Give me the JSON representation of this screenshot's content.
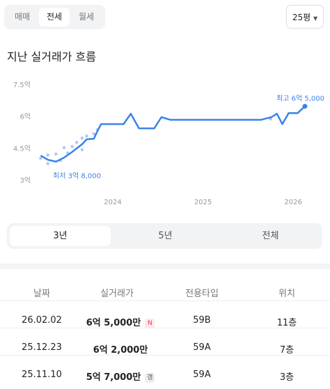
{
  "tabs": {
    "items": [
      "매매",
      "전세",
      "월세"
    ],
    "selected": 1
  },
  "size_select": "25평",
  "section_title": "지난 실거래가 흐름",
  "chart_data": {
    "type": "line",
    "color": "#3b82e8",
    "x": [
      2023.2,
      2023.28,
      2023.37,
      2023.46,
      2023.55,
      2023.66,
      2023.71,
      2023.79,
      2023.83,
      2023.87,
      2024.12,
      2024.2,
      2024.29,
      2024.46,
      2024.54,
      2024.64,
      2025.64,
      2025.76,
      2025.82,
      2025.88,
      2025.95,
      2026.05,
      2026.13
    ],
    "values": [
      4.18,
      3.98,
      3.89,
      4.08,
      4.35,
      4.71,
      4.94,
      4.97,
      5.33,
      5.66,
      5.66,
      6.15,
      5.46,
      5.46,
      5.99,
      5.86,
      5.86,
      5.99,
      6.15,
      5.66,
      6.18,
      6.18,
      6.5
    ],
    "scatter": {
      "color": "#a9c8f5",
      "x": [
        2023.2,
        2023.28,
        2023.28,
        2023.37,
        2023.42,
        2023.46,
        2023.5,
        2023.55,
        2023.6,
        2023.66,
        2023.66,
        2023.71,
        2023.79,
        2023.83,
        2025.75
      ],
      "values": [
        4.05,
        4.2,
        3.8,
        4.25,
        3.95,
        4.55,
        4.3,
        4.6,
        4.8,
        4.45,
        5.0,
        5.1,
        5.2,
        5.4,
        5.9
      ]
    },
    "xlim": [
      2023.1,
      2026.2
    ],
    "ylim": [
      3,
      7.5
    ],
    "xticks": [
      2024,
      2025,
      2026
    ],
    "yticks": [
      {
        "value": 3,
        "label": "3억"
      },
      {
        "value": 4.5,
        "label": "4.5억"
      },
      {
        "value": 6,
        "label": "6억"
      },
      {
        "value": 7.5,
        "label": "7.5억"
      }
    ],
    "grid": false,
    "annotations": [
      {
        "text": "최고 6억 5,000",
        "value": 6.5
      },
      {
        "text": "최저 3억 8,000",
        "value": 3.8
      }
    ]
  },
  "periods": {
    "items": [
      "3년",
      "5년",
      "전체"
    ],
    "selected": 0
  },
  "table": {
    "header": [
      "날짜",
      "실거래가",
      "전용타입",
      "위치"
    ],
    "rows": [
      [
        "26.02.02",
        "6억 5,000만",
        "N",
        "59B",
        "11층"
      ],
      [
        "25.12.23",
        "6억 2,000만",
        null,
        "59A",
        "7층"
      ],
      [
        "25.11.10",
        "5억 7,000만",
        "갱",
        "59A",
        "3층"
      ]
    ]
  }
}
